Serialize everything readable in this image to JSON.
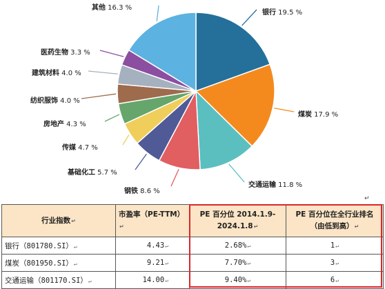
{
  "chart_data": {
    "type": "pie",
    "slices": [
      {
        "name": "银行",
        "value": 19.5,
        "label": "19.5 %",
        "color": "#25709b"
      },
      {
        "name": "煤炭",
        "value": 17.9,
        "label": "17.9 %",
        "color": "#f48a1e"
      },
      {
        "name": "交通运输",
        "value": 11.8,
        "label": "11.8 %",
        "color": "#5bbfc0"
      },
      {
        "name": "钢铁",
        "value": 8.6,
        "label": "8.6 %",
        "color": "#e15e61"
      },
      {
        "name": "基础化工",
        "value": 5.7,
        "label": "5.7 %",
        "color": "#4f5a96"
      },
      {
        "name": "传媒",
        "value": 4.7,
        "label": "4.7 %",
        "color": "#f0ce5b"
      },
      {
        "name": "房地产",
        "value": 4.3,
        "label": "4.3 %",
        "color": "#66a56b"
      },
      {
        "name": "纺织服饰",
        "value": 4.0,
        "label": "4.0 %",
        "color": "#9e6b4d"
      },
      {
        "name": "建筑材料",
        "value": 4.0,
        "label": "4.0 %",
        "color": "#a5b1bf"
      },
      {
        "name": "医药生物",
        "value": 3.3,
        "label": "3.3 %",
        "color": "#8c4ea1"
      },
      {
        "name": "其他",
        "value": 16.3,
        "label": "16.3 %",
        "color": "#5cb2e0"
      }
    ]
  },
  "table": {
    "headers": [
      "行业指数",
      "市盈率（PE-TTM）",
      "PE 百分位 2014.1.9-2024.1.8",
      "PE 百分位在全行业排名（由低到高）"
    ],
    "rows": [
      [
        "银行（801780.SI）",
        "4.43",
        "2.68%",
        "1"
      ],
      [
        "煤炭（801950.SI）",
        "9.21",
        "7.70%",
        "3"
      ],
      [
        "交通运输（801170.SI）",
        "14.00",
        "9.40%",
        "6"
      ]
    ]
  },
  "colors": {
    "header_bg": "#fbe5c6",
    "highlight_border": "#d9262b"
  }
}
